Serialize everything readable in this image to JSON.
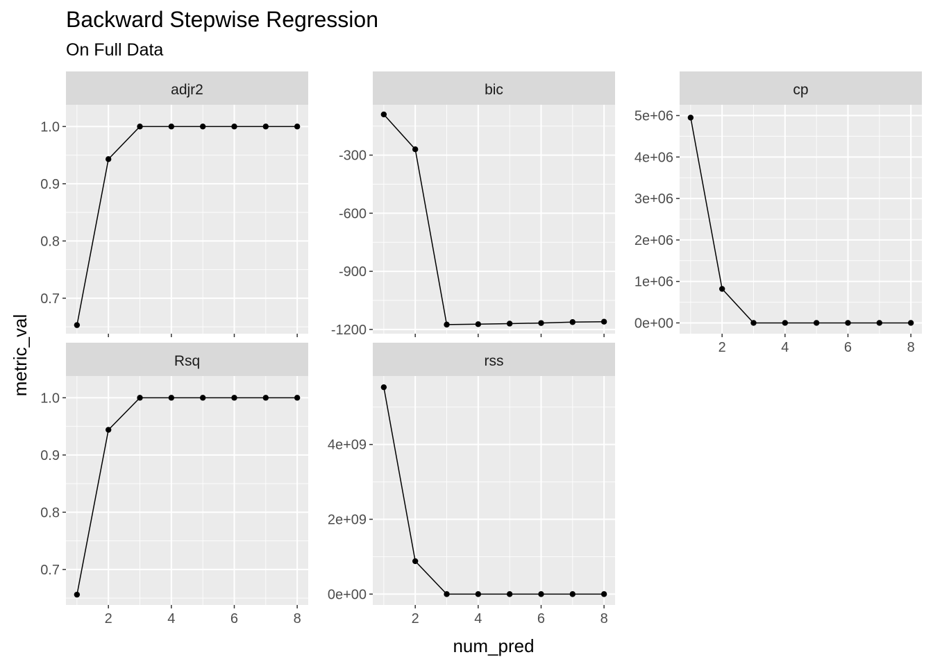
{
  "chart_data": {
    "type": "line",
    "title": "Backward Stepwise Regression",
    "subtitle": "On Full Data",
    "xlabel": "num_pred",
    "ylabel": "metric_val",
    "x": [
      1,
      2,
      3,
      4,
      5,
      6,
      7,
      8
    ],
    "xticks": [
      2,
      4,
      6,
      8
    ],
    "xlim": [
      0.65,
      8.35
    ],
    "grid": true,
    "legend": "none",
    "facets": [
      {
        "name": "adjr2",
        "values": [
          0.653,
          0.943,
          1.0,
          1.0,
          1.0,
          1.0,
          1.0,
          1.0
        ],
        "ylim": [
          0.638,
          1.038
        ],
        "yticks": [
          0.7,
          0.8,
          0.9,
          1.0
        ],
        "ytick_labels": [
          "0.7",
          "0.8",
          "0.9",
          "1.0"
        ],
        "show_x_axis": false
      },
      {
        "name": "bic",
        "values": [
          -90,
          -270,
          -1175,
          -1173,
          -1170,
          -1167,
          -1162,
          -1160
        ],
        "ylim": [
          -1222,
          -40
        ],
        "yticks": [
          -1200,
          -900,
          -600,
          -300
        ],
        "ytick_labels": [
          "-1200",
          "-900",
          "-600",
          "-300"
        ],
        "show_x_axis": false
      },
      {
        "name": "cp",
        "values": [
          4950000,
          820000,
          0,
          0,
          0,
          0,
          0,
          0
        ],
        "ylim": [
          -260000,
          5260000
        ],
        "yticks": [
          0,
          1000000,
          2000000,
          3000000,
          4000000,
          5000000
        ],
        "ytick_labels": [
          "0e+00",
          "1e+06",
          "2e+06",
          "3e+06",
          "4e+06",
          "5e+06"
        ],
        "show_x_axis": true
      },
      {
        "name": "Rsq",
        "values": [
          0.656,
          0.944,
          1.0,
          1.0,
          1.0,
          1.0,
          1.0,
          1.0
        ],
        "ylim": [
          0.638,
          1.038
        ],
        "yticks": [
          0.7,
          0.8,
          0.9,
          1.0
        ],
        "ytick_labels": [
          "0.7",
          "0.8",
          "0.9",
          "1.0"
        ],
        "show_x_axis": true
      },
      {
        "name": "rss",
        "values": [
          5530000000,
          880000000,
          0,
          0,
          0,
          0,
          0,
          0
        ],
        "ylim": [
          -290000000,
          5830000000
        ],
        "yticks": [
          0,
          2000000000,
          4000000000
        ],
        "ytick_labels": [
          "0e+00",
          "2e+09",
          "4e+09"
        ],
        "show_x_axis": true
      }
    ]
  }
}
